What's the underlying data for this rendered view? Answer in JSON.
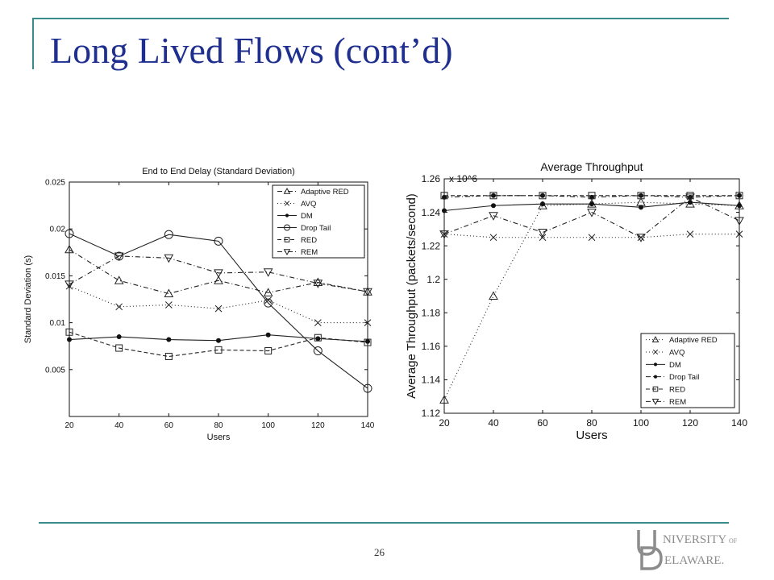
{
  "slide": {
    "title": "Long Lived Flows (cont’d)",
    "page_number": "26",
    "logo_text": "UNIVERSITY OF DELAWARE"
  },
  "colors": {
    "accent": "#3a8c8c",
    "title": "#1f2f8f"
  },
  "chart_data": [
    {
      "type": "line",
      "title": "End to End Delay (Standard Deviation)",
      "xlabel": "Users",
      "ylabel": "Standard Deviation (s)",
      "x": [
        20,
        40,
        60,
        80,
        100,
        120,
        140
      ],
      "xlim": [
        20,
        140
      ],
      "ylim": [
        0,
        0.025
      ],
      "xticks": [
        "20",
        "40",
        "60",
        "80",
        "100",
        "120",
        "140"
      ],
      "yticks": [
        {
          "v": 0.005,
          "label": "0.005"
        },
        {
          "v": 0.01,
          "label": "0.01"
        },
        {
          "v": 0.015,
          "label": "0.015"
        },
        {
          "v": 0.02,
          "label": "0.02"
        },
        {
          "v": 0.025,
          "label": "0.025"
        }
      ],
      "grid": false,
      "legend": "top-right",
      "series": [
        {
          "name": "Adaptive RED",
          "marker": "triangle-up",
          "dash": "6,3,1,3",
          "values": [
            0.0178,
            0.0145,
            0.0131,
            0.0145,
            0.0132,
            0.0143,
            0.0133
          ]
        },
        {
          "name": "AVQ",
          "marker": "x",
          "dash": "1,3",
          "values": [
            0.0139,
            0.0117,
            0.0119,
            0.0115,
            0.0124,
            0.01,
            0.01
          ]
        },
        {
          "name": "DM",
          "marker": "dot",
          "dash": "",
          "values": [
            0.0082,
            0.0085,
            0.0082,
            0.0081,
            0.0087,
            0.0083,
            0.008
          ]
        },
        {
          "name": "Drop Tail",
          "marker": "circle",
          "dash": "",
          "values": [
            0.0195,
            0.0171,
            0.0194,
            0.0187,
            0.0121,
            0.007,
            0.003
          ]
        },
        {
          "name": "RED",
          "marker": "square",
          "dash": "5,3",
          "values": [
            0.009,
            0.0073,
            0.0064,
            0.0071,
            0.007,
            0.0084,
            0.0079
          ]
        },
        {
          "name": "REM",
          "marker": "triangle-down",
          "dash": "6,3,1,3",
          "values": [
            0.0141,
            0.0171,
            0.0169,
            0.0153,
            0.0154,
            0.0142,
            0.0133
          ]
        }
      ]
    },
    {
      "type": "line",
      "title": "Average Throughput",
      "xlabel": "Users",
      "ylabel": "Average Throughput (packets/second)",
      "scale_note": "x 10^6",
      "x": [
        20,
        40,
        60,
        80,
        100,
        120,
        140
      ],
      "xlim": [
        20,
        140
      ],
      "ylim": [
        1.12,
        1.26
      ],
      "xticks": [
        "20",
        "40",
        "60",
        "80",
        "100",
        "120",
        "140"
      ],
      "yticks": [
        {
          "v": 1.12,
          "label": "1.12"
        },
        {
          "v": 1.14,
          "label": "1.14"
        },
        {
          "v": 1.16,
          "label": "1.16"
        },
        {
          "v": 1.18,
          "label": "1.18"
        },
        {
          "v": 1.2,
          "label": "1.2"
        },
        {
          "v": 1.22,
          "label": "1.22"
        },
        {
          "v": 1.24,
          "label": "1.24"
        },
        {
          "v": 1.26,
          "label": "1.26"
        }
      ],
      "grid": false,
      "legend": "bottom-right",
      "series": [
        {
          "name": "Adaptive RED",
          "marker": "triangle-up",
          "dash": "1,3",
          "values": [
            1.128,
            1.19,
            1.244,
            1.245,
            1.246,
            1.245,
            1.244
          ]
        },
        {
          "name": "AVQ",
          "marker": "x",
          "dash": "1,3",
          "values": [
            1.227,
            1.225,
            1.225,
            1.225,
            1.225,
            1.227,
            1.227
          ]
        },
        {
          "name": "DM",
          "marker": "dot",
          "dash": "",
          "values": [
            1.241,
            1.244,
            1.245,
            1.245,
            1.243,
            1.246,
            1.244
          ]
        },
        {
          "name": "Drop Tail",
          "marker": "dot",
          "dash": "6,3,1,3",
          "values": [
            1.249,
            1.25,
            1.25,
            1.249,
            1.25,
            1.249,
            1.25
          ]
        },
        {
          "name": "RED",
          "marker": "square",
          "dash": "5,3",
          "values": [
            1.25,
            1.25,
            1.25,
            1.25,
            1.25,
            1.25,
            1.25
          ]
        },
        {
          "name": "REM",
          "marker": "triangle-down",
          "dash": "6,3,1,3",
          "values": [
            1.227,
            1.238,
            1.228,
            1.24,
            1.225,
            1.249,
            1.235
          ]
        }
      ]
    }
  ]
}
